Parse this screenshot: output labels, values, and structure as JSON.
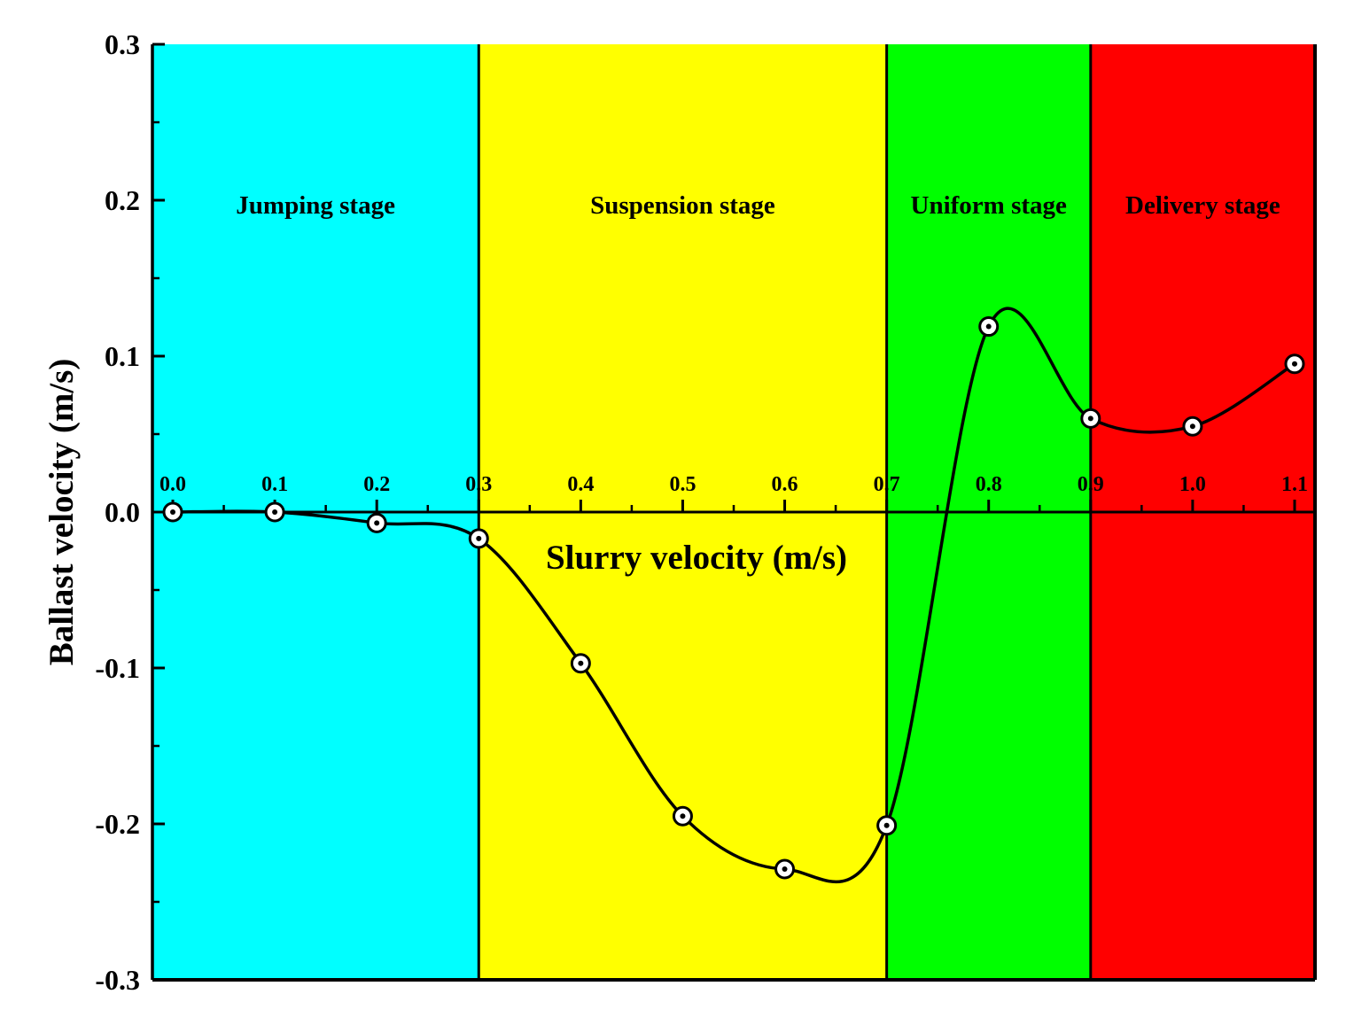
{
  "chart_data": {
    "type": "line",
    "title": "",
    "xlabel": "Slurry velocity (m/s)",
    "ylabel": "Ballast velocity (m/s)",
    "xlim": [
      -0.02,
      1.12
    ],
    "ylim": [
      -0.3,
      0.3
    ],
    "x_ticks": [
      0.0,
      0.1,
      0.2,
      0.3,
      0.4,
      0.5,
      0.6,
      0.7,
      0.8,
      0.9,
      1.0,
      1.1
    ],
    "x_tick_labels": [
      "0.0",
      "0.1",
      "0.2",
      "0.3",
      "0.4",
      "0.5",
      "0.6",
      "0.7",
      "0.8",
      "0.9",
      "1.0",
      "1.1"
    ],
    "y_ticks": [
      -0.3,
      -0.2,
      -0.1,
      0.0,
      0.1,
      0.2,
      0.3
    ],
    "y_tick_labels": [
      "-0.3",
      "-0.2",
      "-0.1",
      "0.0",
      "0.1",
      "0.2",
      "0.3"
    ],
    "grid": false,
    "legend": "none",
    "series": [
      {
        "x": [
          0.0,
          0.1,
          0.2,
          0.3,
          0.4,
          0.5,
          0.6,
          0.7,
          0.8,
          0.9,
          1.0,
          1.1
        ],
        "values": [
          0.0,
          0.0,
          -0.007,
          -0.017,
          -0.097,
          -0.195,
          -0.229,
          -0.201,
          0.119,
          0.06,
          0.055,
          0.095
        ],
        "color": "#000000",
        "marker": "circle-dot"
      }
    ],
    "regions": [
      {
        "label": "Jumping stage",
        "x_start": -0.02,
        "x_end": 0.3,
        "color": "#00ffff"
      },
      {
        "label": "Suspension stage",
        "x_start": 0.3,
        "x_end": 0.7,
        "color": "#ffff00"
      },
      {
        "label": "Uniform stage",
        "x_start": 0.7,
        "x_end": 0.9,
        "color": "#00ff00"
      },
      {
        "label": "Delivery stage",
        "x_start": 0.9,
        "x_end": 1.12,
        "color": "#ff0000"
      }
    ]
  }
}
